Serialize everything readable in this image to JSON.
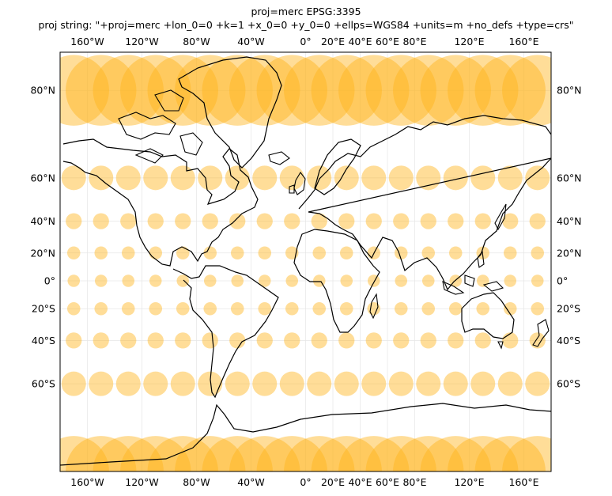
{
  "title": "proj=merc EPSG:3395",
  "subtitle": "proj string: \"+proj=merc +lon_0=0 +k=1 +x_0=0 +y_0=0 +ellps=WGS84 +units=m +no_defs +type=crs\"",
  "colors": {
    "circle_fill": "#ffb31a",
    "coastline": "#000000",
    "gridline": "#e6e6e6",
    "frame": "#000000"
  },
  "map": {
    "projection": "Mercator",
    "lon_range": [
      -180,
      180
    ],
    "lat_range": [
      -85,
      85
    ],
    "gridlines": true,
    "lon_ticks": [
      {
        "lon": -160,
        "label": "160°W"
      },
      {
        "lon": -120,
        "label": "120°W"
      },
      {
        "lon": -80,
        "label": "80°W"
      },
      {
        "lon": -40,
        "label": "40°W"
      },
      {
        "lon": 0,
        "label": "0°"
      },
      {
        "lon": 20,
        "label": "20°E"
      },
      {
        "lon": 40,
        "label": "40°E"
      },
      {
        "lon": 60,
        "label": "60°E"
      },
      {
        "lon": 80,
        "label": "80°E"
      },
      {
        "lon": 120,
        "label": "120°E"
      },
      {
        "lon": 160,
        "label": "160°E"
      }
    ],
    "lat_ticks": [
      {
        "lat": 80,
        "label": "80°N"
      },
      {
        "lat": 60,
        "label": "60°N"
      },
      {
        "lat": 40,
        "label": "40°N"
      },
      {
        "lat": 20,
        "label": "20°N"
      },
      {
        "lat": 0,
        "label": "0°"
      },
      {
        "lat": -20,
        "label": "20°S"
      },
      {
        "lat": -40,
        "label": "40°S"
      },
      {
        "lat": -60,
        "label": "60°S"
      }
    ],
    "tissot": {
      "lons": [
        -170,
        -150,
        -130,
        -110,
        -90,
        -70,
        -50,
        -30,
        -10,
        10,
        30,
        50,
        70,
        90,
        110,
        130,
        150,
        170
      ],
      "lats": [
        -80,
        -60,
        -40,
        -20,
        0,
        20,
        40,
        60,
        80
      ],
      "radius_deg": 4.5,
      "opacity": 0.45
    }
  }
}
